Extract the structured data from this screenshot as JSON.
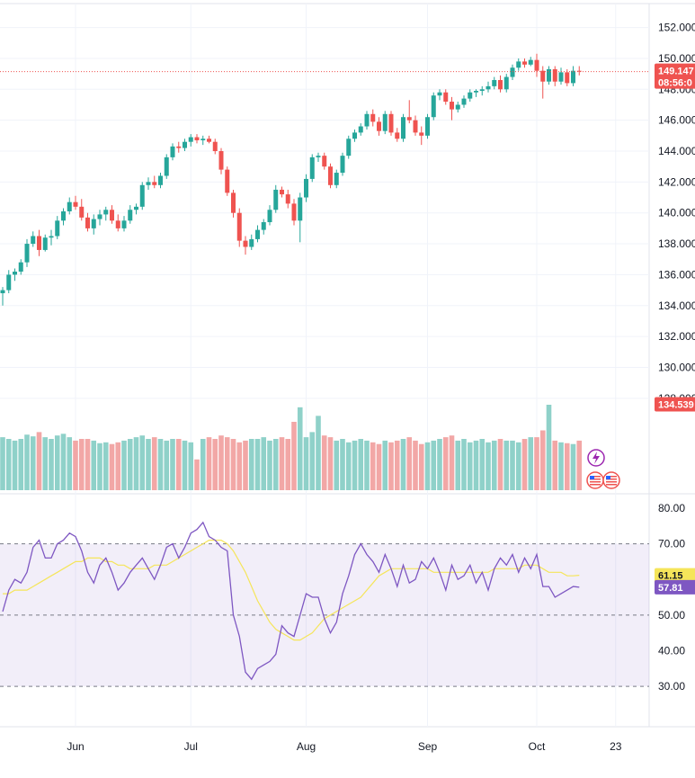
{
  "chart_data": {
    "type": "candlestick",
    "price_pane": {
      "y_ticks": [
        "152.000",
        "150.000",
        "148.000",
        "146.000",
        "144.000",
        "142.000",
        "140.000",
        "138.000",
        "136.000",
        "134.000",
        "132.000",
        "130.000",
        "128.000"
      ],
      "ylim": [
        127.0,
        152.5
      ],
      "last_price": "149.147",
      "countdown": "08:56:0",
      "volume_label": "134.539",
      "colors": {
        "up": "#26a69a",
        "down": "#ef5350",
        "up_vol": "#8fd1c9",
        "down_vol": "#f2a7a6",
        "grid": "#f0f3fa"
      },
      "candles": [
        [
          134.8,
          135.2,
          134.0,
          135.0
        ],
        [
          135.0,
          136.3,
          134.8,
          136.0
        ],
        [
          136.0,
          136.4,
          135.6,
          136.2
        ],
        [
          136.2,
          137.0,
          136.0,
          136.8
        ],
        [
          136.8,
          138.3,
          136.5,
          138.0
        ],
        [
          138.0,
          138.8,
          137.8,
          138.5
        ],
        [
          138.5,
          138.9,
          137.2,
          137.6
        ],
        [
          137.6,
          138.6,
          137.5,
          138.4
        ],
        [
          138.4,
          138.9,
          137.9,
          138.5
        ],
        [
          138.5,
          139.8,
          138.3,
          139.5
        ],
        [
          139.5,
          140.3,
          139.2,
          140.1
        ],
        [
          140.1,
          141.0,
          139.9,
          140.7
        ],
        [
          140.7,
          141.1,
          140.2,
          140.4
        ],
        [
          140.4,
          140.9,
          139.5,
          139.7
        ],
        [
          139.7,
          140.0,
          138.8,
          139.0
        ],
        [
          139.0,
          139.9,
          138.6,
          139.6
        ],
        [
          139.6,
          140.2,
          139.2,
          139.9
        ],
        [
          139.9,
          140.4,
          139.5,
          140.2
        ],
        [
          140.2,
          140.5,
          139.3,
          139.5
        ],
        [
          139.5,
          139.9,
          138.8,
          139.0
        ],
        [
          139.0,
          139.8,
          138.8,
          139.5
        ],
        [
          139.5,
          140.5,
          139.3,
          140.2
        ],
        [
          140.2,
          140.6,
          139.9,
          140.4
        ],
        [
          140.4,
          142.0,
          140.2,
          141.8
        ],
        [
          141.8,
          142.3,
          141.5,
          142.0
        ],
        [
          142.0,
          142.4,
          141.6,
          141.8
        ],
        [
          141.8,
          142.6,
          141.6,
          142.4
        ],
        [
          142.4,
          143.8,
          142.2,
          143.6
        ],
        [
          143.6,
          144.5,
          143.4,
          144.3
        ],
        [
          144.3,
          144.6,
          143.9,
          144.2
        ],
        [
          144.2,
          144.8,
          144.0,
          144.6
        ],
        [
          144.6,
          145.1,
          144.3,
          144.9
        ],
        [
          144.9,
          145.1,
          144.5,
          144.7
        ],
        [
          144.7,
          145.0,
          144.4,
          144.8
        ],
        [
          144.8,
          145.0,
          144.5,
          144.6
        ],
        [
          144.6,
          144.8,
          143.8,
          144.0
        ],
        [
          144.0,
          144.2,
          142.5,
          142.8
        ],
        [
          142.8,
          143.0,
          141.1,
          141.3
        ],
        [
          141.3,
          141.5,
          139.7,
          140.0
        ],
        [
          140.0,
          140.3,
          137.8,
          138.2
        ],
        [
          138.2,
          138.5,
          137.3,
          137.8
        ],
        [
          137.8,
          138.6,
          137.6,
          138.3
        ],
        [
          138.3,
          139.2,
          138.1,
          138.9
        ],
        [
          138.9,
          139.6,
          138.6,
          139.4
        ],
        [
          139.4,
          140.5,
          139.2,
          140.2
        ],
        [
          140.2,
          141.8,
          140.0,
          141.5
        ],
        [
          141.5,
          141.7,
          141.0,
          141.2
        ],
        [
          141.2,
          141.5,
          140.3,
          140.6
        ],
        [
          140.6,
          140.9,
          139.2,
          139.5
        ],
        [
          139.5,
          141.3,
          138.1,
          141.0
        ],
        [
          141.0,
          142.5,
          140.7,
          142.2
        ],
        [
          142.2,
          143.8,
          142.0,
          143.6
        ],
        [
          143.6,
          143.9,
          143.3,
          143.7
        ],
        [
          143.7,
          143.9,
          142.8,
          143.0
        ],
        [
          143.0,
          143.2,
          141.6,
          141.8
        ],
        [
          141.8,
          142.8,
          141.6,
          142.6
        ],
        [
          142.6,
          143.9,
          142.4,
          143.7
        ],
        [
          143.7,
          145.0,
          143.5,
          144.8
        ],
        [
          144.8,
          145.4,
          144.6,
          145.2
        ],
        [
          145.2,
          145.8,
          145.0,
          145.6
        ],
        [
          145.6,
          146.6,
          145.4,
          146.4
        ],
        [
          146.4,
          146.7,
          145.6,
          145.9
        ],
        [
          145.9,
          146.2,
          145.0,
          145.3
        ],
        [
          145.3,
          146.6,
          145.1,
          146.4
        ],
        [
          146.4,
          146.6,
          145.0,
          145.2
        ],
        [
          145.2,
          145.5,
          144.6,
          144.8
        ],
        [
          144.8,
          146.4,
          144.6,
          146.2
        ],
        [
          146.2,
          147.3,
          145.8,
          146.0
        ],
        [
          146.0,
          146.3,
          145.0,
          145.2
        ],
        [
          145.2,
          145.6,
          144.4,
          145.0
        ],
        [
          145.0,
          146.4,
          144.8,
          146.2
        ],
        [
          146.2,
          147.8,
          146.0,
          147.6
        ],
        [
          147.6,
          148.0,
          147.3,
          147.8
        ],
        [
          147.8,
          148.0,
          147.0,
          147.2
        ],
        [
          147.2,
          147.5,
          146.0,
          146.7
        ],
        [
          146.7,
          147.2,
          146.5,
          147.0
        ],
        [
          147.0,
          147.6,
          146.8,
          147.4
        ],
        [
          147.4,
          148.0,
          147.2,
          147.8
        ],
        [
          147.8,
          148.0,
          147.5,
          147.9
        ],
        [
          147.9,
          148.2,
          147.6,
          148.0
        ],
        [
          148.0,
          148.5,
          147.8,
          148.2
        ],
        [
          148.2,
          148.8,
          148.0,
          148.6
        ],
        [
          148.6,
          148.9,
          147.8,
          148.0
        ],
        [
          148.0,
          149.0,
          147.8,
          148.8
        ],
        [
          148.8,
          149.6,
          148.6,
          149.4
        ],
        [
          149.4,
          150.0,
          149.2,
          149.8
        ],
        [
          149.8,
          150.0,
          149.4,
          149.6
        ],
        [
          149.6,
          150.1,
          149.5,
          149.9
        ],
        [
          149.9,
          150.3,
          148.8,
          149.2
        ],
        [
          149.2,
          149.5,
          147.4,
          148.5
        ],
        [
          148.5,
          149.5,
          148.3,
          149.3
        ],
        [
          149.3,
          149.5,
          148.2,
          148.5
        ],
        [
          148.5,
          149.4,
          148.3,
          149.1
        ],
        [
          149.1,
          149.3,
          148.2,
          148.4
        ],
        [
          148.4,
          149.5,
          148.2,
          149.2
        ],
        [
          149.2,
          149.5,
          148.9,
          149.147
        ]
      ],
      "volume": [
        0.62,
        0.6,
        0.58,
        0.6,
        0.65,
        0.63,
        0.68,
        0.62,
        0.6,
        0.64,
        0.66,
        0.62,
        0.58,
        0.6,
        0.6,
        0.58,
        0.55,
        0.56,
        0.54,
        0.56,
        0.58,
        0.6,
        0.62,
        0.64,
        0.6,
        0.62,
        0.6,
        0.58,
        0.6,
        0.6,
        0.58,
        0.56,
        0.36,
        0.6,
        0.62,
        0.6,
        0.64,
        0.62,
        0.6,
        0.56,
        0.58,
        0.6,
        0.6,
        0.62,
        0.58,
        0.6,
        0.62,
        0.6,
        0.8,
        0.97,
        0.62,
        0.68,
        0.87,
        0.64,
        0.62,
        0.58,
        0.6,
        0.56,
        0.58,
        0.6,
        0.58,
        0.56,
        0.54,
        0.58,
        0.56,
        0.58,
        0.6,
        0.62,
        0.58,
        0.54,
        0.56,
        0.58,
        0.6,
        0.62,
        0.64,
        0.58,
        0.6,
        0.56,
        0.58,
        0.6,
        0.56,
        0.58,
        0.6,
        0.58,
        0.58,
        0.56,
        0.6,
        0.62,
        0.62,
        0.7,
        1.0,
        0.58,
        0.56,
        0.55,
        0.54,
        0.58
      ]
    },
    "rsi_pane": {
      "y_ticks": [
        "80.00",
        "70.00",
        "60.00",
        "50.00",
        "40.00",
        "30.00"
      ],
      "ylim": [
        27.0,
        82.0
      ],
      "band": [
        30,
        70
      ],
      "midline": 50,
      "rsi_value": "57.81",
      "ma_value": "61.15",
      "colors": {
        "rsi": "#7e57c2",
        "ma": "#f5e55a",
        "band": "rgba(126,87,194,0.1)"
      },
      "rsi": [
        51,
        57,
        60,
        59,
        62,
        69,
        71,
        66,
        66,
        70,
        71,
        73,
        72,
        68,
        62,
        59,
        64,
        66,
        62,
        57,
        59,
        62,
        64,
        66,
        63,
        60,
        64,
        69,
        70,
        66,
        69,
        73,
        74,
        76,
        72,
        71,
        69,
        68,
        50,
        44,
        34,
        32,
        35,
        36,
        37,
        39,
        47,
        45,
        44,
        50,
        56,
        55,
        55,
        49,
        45,
        48,
        56,
        61,
        67,
        70,
        67,
        65,
        62,
        67,
        63,
        58,
        64,
        59,
        60,
        65,
        63,
        66,
        62,
        57,
        64,
        60,
        61,
        64,
        59,
        62,
        57,
        63,
        66,
        64,
        67,
        62,
        66,
        63,
        67,
        58,
        58,
        55,
        56,
        57,
        58,
        57.81
      ],
      "ma": [
        56,
        56,
        57,
        57,
        57,
        58,
        59,
        60,
        61,
        62,
        63,
        64,
        65,
        65,
        66,
        66,
        66,
        65,
        65,
        64,
        64,
        63,
        63,
        63,
        63,
        64,
        64,
        64,
        65,
        66,
        67,
        68,
        69,
        70,
        71,
        71,
        71,
        70,
        68,
        65,
        62,
        58,
        54,
        51,
        48,
        46,
        45,
        44,
        43,
        43,
        44,
        45,
        47,
        49,
        50,
        51,
        52,
        53,
        54,
        55,
        57,
        59,
        61,
        62,
        63,
        63,
        63,
        63,
        63,
        63,
        63,
        62,
        62,
        62,
        62,
        62,
        62,
        62,
        62,
        62,
        62,
        63,
        63,
        63,
        63,
        63,
        64,
        64,
        64,
        63,
        62,
        62,
        62,
        61,
        61,
        61.15
      ]
    },
    "x_ticks": [
      {
        "label": "Jun",
        "i": 12
      },
      {
        "label": "Jul",
        "i": 31
      },
      {
        "label": "Aug",
        "i": 50
      },
      {
        "label": "Sep",
        "i": 70
      },
      {
        "label": "Oct",
        "i": 88
      },
      {
        "label": "23",
        "i": 101
      }
    ]
  }
}
